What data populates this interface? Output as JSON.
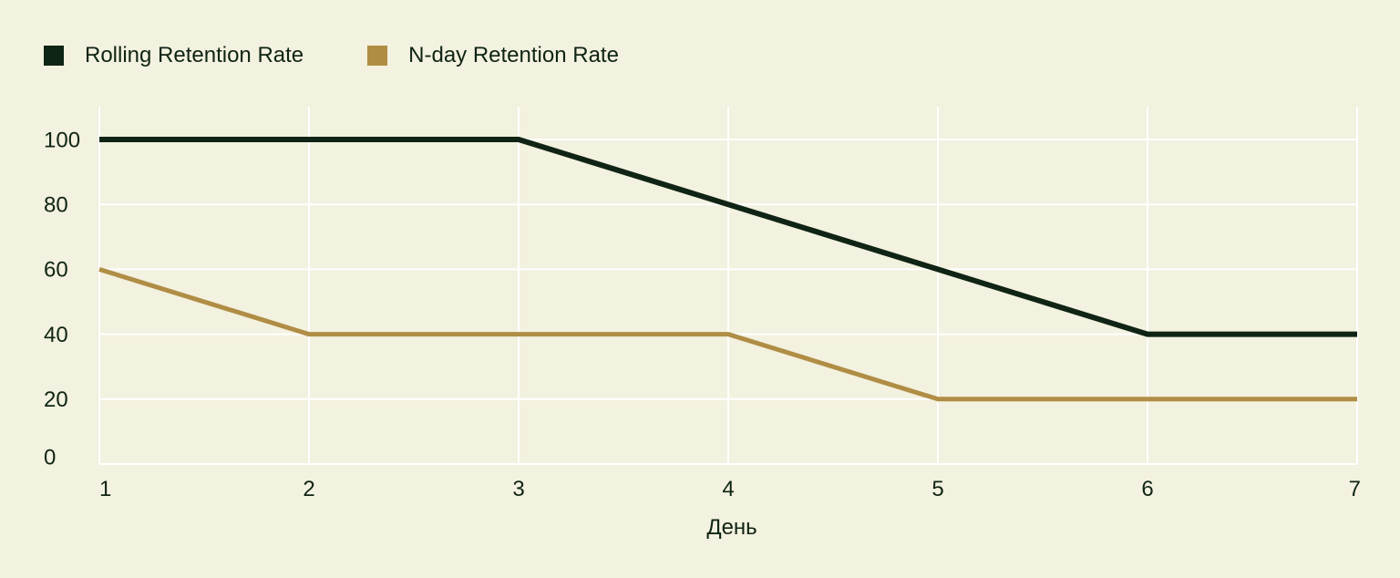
{
  "colors": {
    "background": "#f3f1df",
    "grid": "#ffffff",
    "text": "#0f2414"
  },
  "chart_data": {
    "type": "line",
    "title": "",
    "xlabel": "День",
    "ylabel": "",
    "x": [
      1,
      2,
      3,
      4,
      5,
      6,
      7
    ],
    "xlim": [
      1,
      7
    ],
    "ylim": [
      0,
      100
    ],
    "yticks": [
      0,
      20,
      40,
      60,
      80,
      100
    ],
    "xticks": [
      1,
      2,
      3,
      4,
      5,
      6,
      7
    ],
    "grid": true,
    "legend_position": "top-left",
    "series": [
      {
        "name": "Rolling Retention Rate",
        "color": "#0f2414",
        "values": [
          100,
          100,
          100,
          80,
          60,
          40,
          40
        ]
      },
      {
        "name": "N-day Retention Rate",
        "color": "#b08d45",
        "values": [
          60,
          40,
          40,
          40,
          20,
          20,
          20
        ]
      }
    ]
  }
}
